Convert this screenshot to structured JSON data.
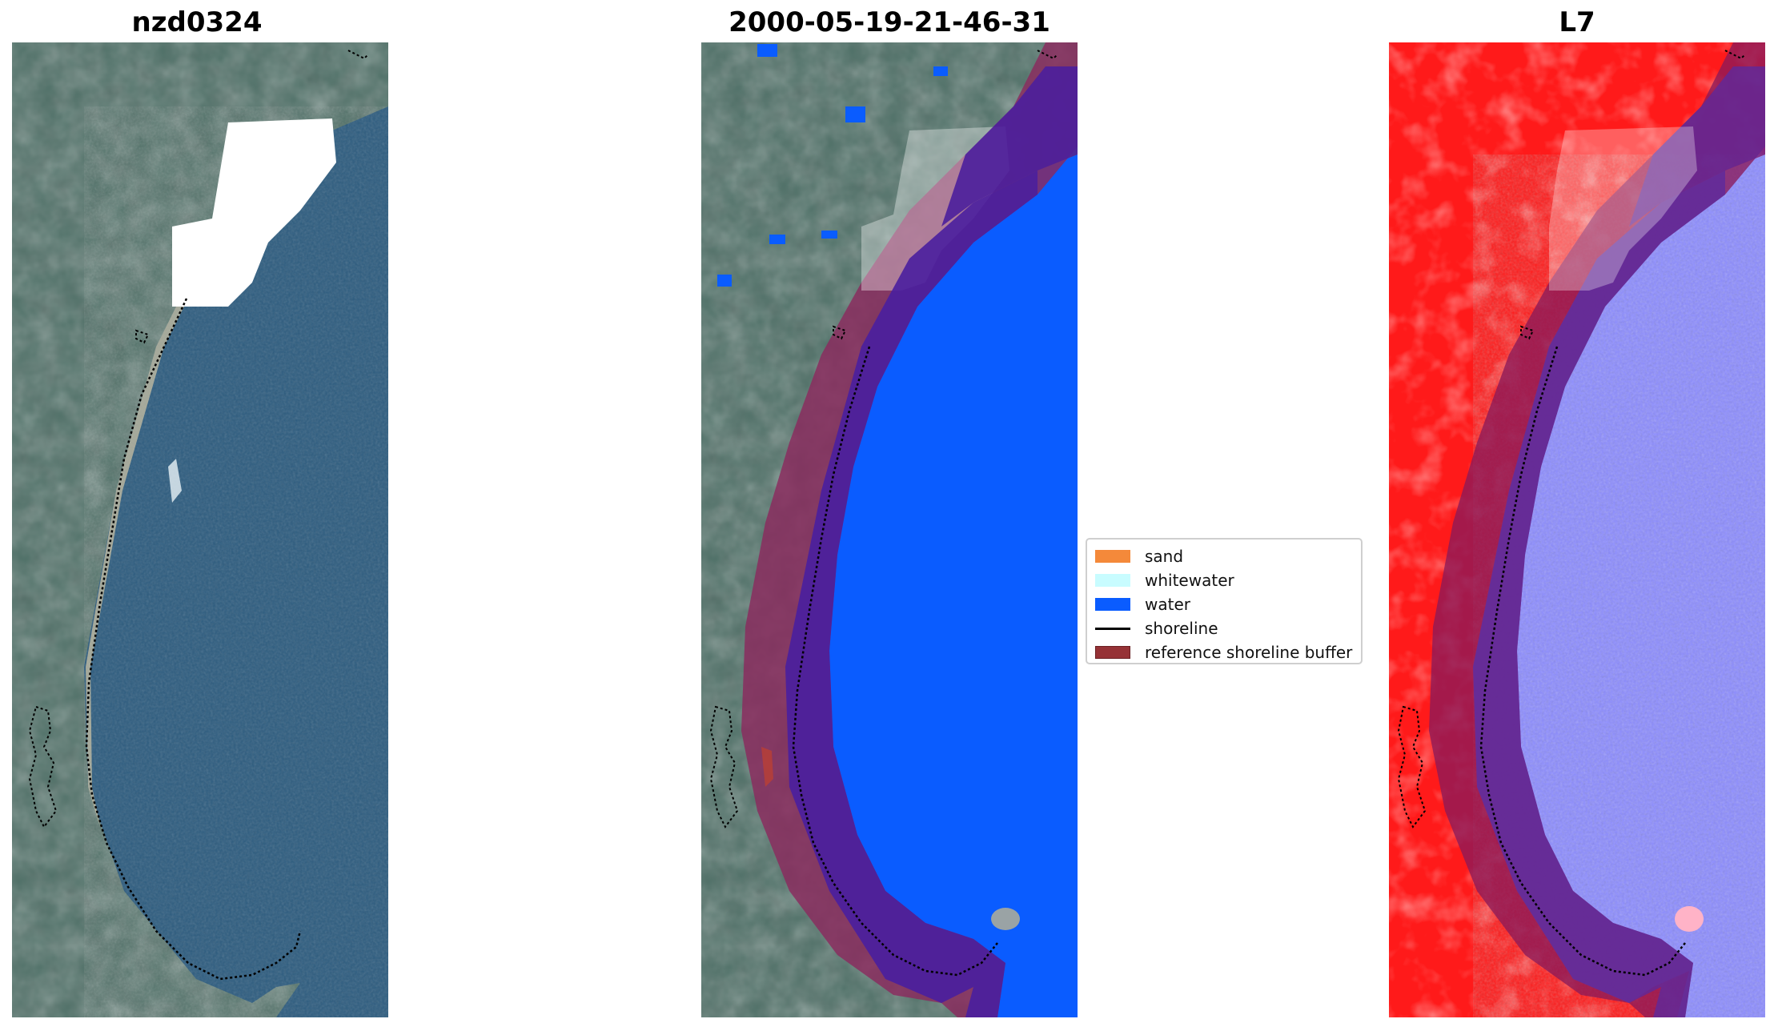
{
  "panels": [
    {
      "title": "nzd0324"
    },
    {
      "title": "2000-05-19-21-46-31"
    },
    {
      "title": "L7"
    }
  ],
  "legend": {
    "items": [
      {
        "label": "sand",
        "color": "#f4893a",
        "kind": "patch"
      },
      {
        "label": "whitewater",
        "color": "#c8fcff",
        "kind": "patch"
      },
      {
        "label": "water",
        "color": "#0a5cff",
        "kind": "patch"
      },
      {
        "label": "shoreline",
        "color": "#000000",
        "kind": "line"
      },
      {
        "label": "reference shoreline buffer",
        "color": "#963236",
        "kind": "patch"
      }
    ]
  },
  "colors": {
    "sea_rgb": "#2f5c7c",
    "land_rgb": "#4a6b64",
    "cloud_mask": "#ffffff",
    "water_class": "#0a5cff",
    "buffer_overlay": "#8b2a5e",
    "mndwi_land": "#ff1a1a",
    "mndwi_water": "#8c8cff"
  }
}
